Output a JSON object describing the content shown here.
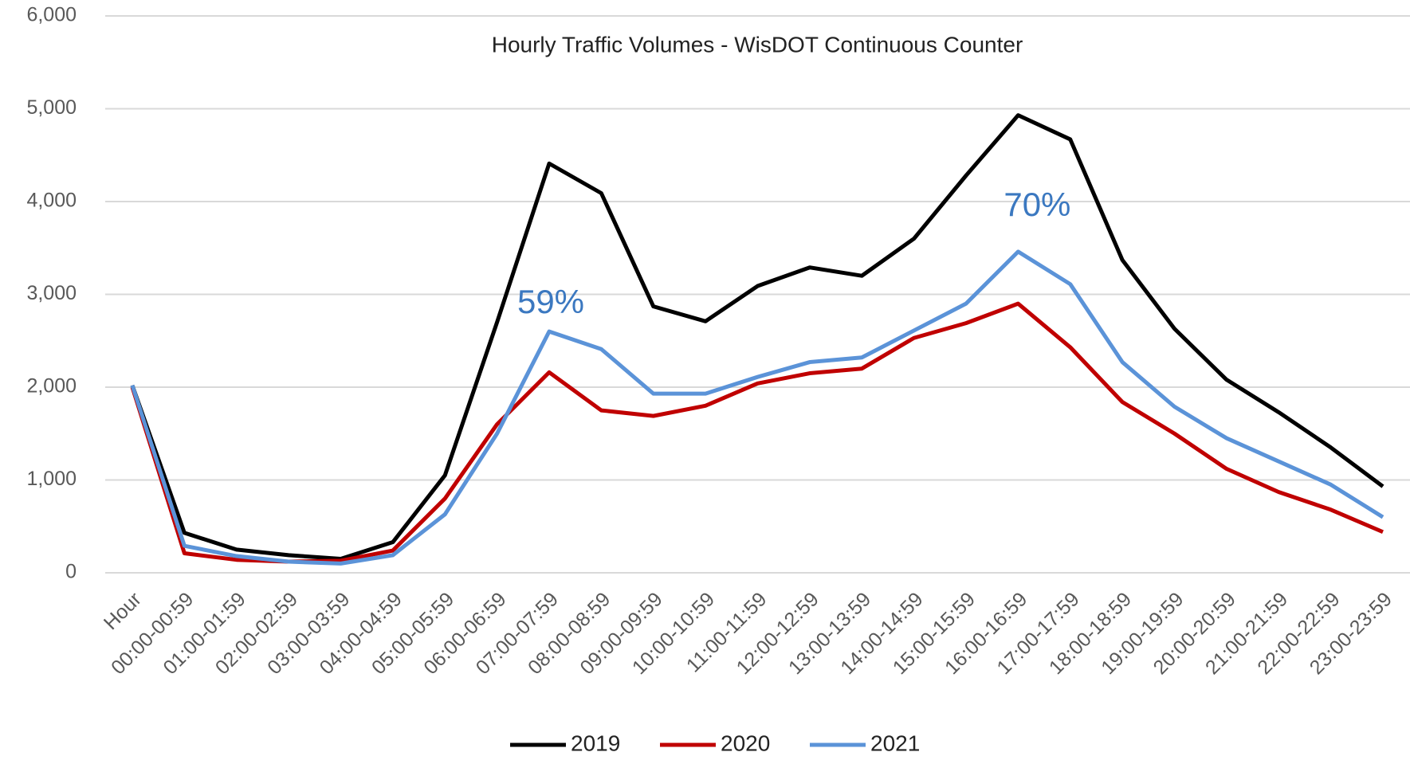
{
  "chart_data": {
    "type": "line",
    "title": "Hourly Traffic Volumes - WisDOT Continuous Counter",
    "categories": [
      "Hour",
      "00:00-00:59",
      "01:00-01:59",
      "02:00-02:59",
      "03:00-03:59",
      "04:00-04:59",
      "05:00-05:59",
      "06:00-06:59",
      "07:00-07:59",
      "08:00-08:59",
      "09:00-09:59",
      "10:00-10:59",
      "11:00-11:59",
      "12:00-12:59",
      "13:00-13:59",
      "14:00-14:59",
      "15:00-15:59",
      "16:00-16:59",
      "17:00-17:59",
      "18:00-18:59",
      "19:00-19:59",
      "20:00-20:59",
      "21:00-21:59",
      "22:00-22:59",
      "23:00-23:59"
    ],
    "series": [
      {
        "name": "2019",
        "color": "#000000",
        "values": [
          2020,
          430,
          250,
          190,
          150,
          330,
          1050,
          2700,
          4410,
          4090,
          2870,
          2710,
          3090,
          3290,
          3200,
          3600,
          4280,
          4930,
          4670,
          3370,
          2630,
          2080,
          1730,
          1350,
          930
        ]
      },
      {
        "name": "2020",
        "color": "#c00000",
        "values": [
          2000,
          210,
          140,
          120,
          130,
          240,
          800,
          1600,
          2160,
          1750,
          1690,
          1800,
          2040,
          2150,
          2200,
          2530,
          2690,
          2900,
          2430,
          1840,
          1500,
          1120,
          870,
          680,
          440
        ]
      },
      {
        "name": "2021",
        "color": "#5b93d8",
        "values": [
          2020,
          290,
          180,
          120,
          100,
          190,
          630,
          1500,
          2600,
          2410,
          1930,
          1930,
          2110,
          2270,
          2320,
          2610,
          2900,
          3460,
          3110,
          2270,
          1790,
          1450,
          1200,
          950,
          600
        ]
      }
    ],
    "annotations": [
      "59%",
      "70%"
    ],
    "ylim": [
      0,
      6000
    ],
    "yticks": [
      0,
      {
        "value": 1000,
        "label": "1,000"
      },
      {
        "value": 2000,
        "label": "2,000"
      },
      {
        "value": 3000,
        "label": "3,000"
      },
      {
        "value": 4000,
        "label": "4,000"
      },
      {
        "value": 5000,
        "label": "5,000"
      },
      {
        "value": 6000,
        "label": "6,000"
      }
    ],
    "grid": true,
    "legend": "bottom"
  }
}
